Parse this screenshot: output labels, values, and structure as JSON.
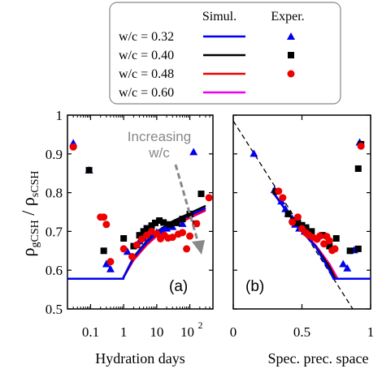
{
  "chart_data": [
    {
      "panel": "(a)",
      "type": "scatter",
      "xscale": "log",
      "xlim": [
        0.02,
        500
      ],
      "ylim": [
        0.5,
        1.0
      ],
      "xlabel": "Hydration days",
      "xticks": [
        "0.1",
        "1",
        "10",
        "10"
      ],
      "xtick_exp": "2",
      "annotation": "Increasing\nw/c",
      "series": [
        {
          "name": "w/c = 0.32",
          "sim_color": "#0000ee",
          "exp_marker": "triangle",
          "sim": [
            [
              0.02,
              0.578
            ],
            [
              0.97,
              0.578
            ],
            [
              1.0,
              0.582
            ],
            [
              2,
              0.632
            ],
            [
              5,
              0.672
            ],
            [
              10,
              0.695
            ],
            [
              30,
              0.722
            ],
            [
              100,
              0.742
            ],
            [
              300,
              0.76
            ]
          ],
          "exp": [
            [
              0.03,
              0.928
            ],
            [
              0.09,
              0.858
            ],
            [
              0.3,
              0.616
            ],
            [
              0.4,
              0.603
            ],
            [
              1.3,
              0.648
            ],
            [
              2.5,
              0.665
            ],
            [
              3,
              0.675
            ],
            [
              4,
              0.683
            ],
            [
              5,
              0.692
            ],
            [
              7,
              0.695
            ],
            [
              10,
              0.698
            ],
            [
              14,
              0.702
            ],
            [
              20,
              0.708
            ],
            [
              30,
              0.712
            ],
            [
              60,
              0.72
            ],
            [
              100,
              0.745
            ],
            [
              130,
              0.905
            ]
          ]
        },
        {
          "name": "w/c = 0.40",
          "sim_color": "#000000",
          "exp_marker": "square",
          "exp": [
            [
              0.09,
              0.858
            ],
            [
              0.25,
              0.65
            ],
            [
              1.0,
              0.682
            ],
            [
              2,
              0.662
            ],
            [
              3,
              0.69
            ],
            [
              4,
              0.7
            ],
            [
              5,
              0.708
            ],
            [
              7,
              0.715
            ],
            [
              9,
              0.722
            ],
            [
              12,
              0.728
            ],
            [
              16,
              0.723
            ],
            [
              25,
              0.718
            ],
            [
              40,
              0.722
            ],
            [
              60,
              0.732
            ],
            [
              100,
              0.745
            ],
            [
              150,
              0.72
            ],
            [
              220,
              0.797
            ]
          ],
          "sim": [
            [
              0.02,
              0.578
            ],
            [
              0.97,
              0.578
            ],
            [
              1.0,
              0.582
            ],
            [
              2,
              0.634
            ],
            [
              5,
              0.675
            ],
            [
              10,
              0.699
            ],
            [
              30,
              0.726
            ],
            [
              100,
              0.747
            ],
            [
              300,
              0.766
            ]
          ]
        },
        {
          "name": "w/c = 0.48",
          "sim_color": "#ee0000",
          "exp_marker": "circle",
          "exp": [
            [
              0.03,
              0.918
            ],
            [
              0.2,
              0.737
            ],
            [
              0.25,
              0.737
            ],
            [
              0.3,
              0.718
            ],
            [
              0.4,
              0.622
            ],
            [
              1.0,
              0.655
            ],
            [
              1.8,
              0.635
            ],
            [
              2.5,
              0.665
            ],
            [
              3.5,
              0.68
            ],
            [
              5,
              0.69
            ],
            [
              7,
              0.7
            ],
            [
              10,
              0.694
            ],
            [
              13,
              0.681
            ],
            [
              17,
              0.69
            ],
            [
              22,
              0.683
            ],
            [
              30,
              0.685
            ],
            [
              45,
              0.693
            ],
            [
              60,
              0.697
            ],
            [
              80,
              0.655
            ],
            [
              100,
              0.688
            ],
            [
              160,
              0.72
            ],
            [
              380,
              0.787
            ]
          ],
          "sim": [
            [
              0.02,
              0.578
            ],
            [
              0.97,
              0.578
            ],
            [
              1.0,
              0.582
            ],
            [
              2,
              0.628
            ],
            [
              5,
              0.667
            ],
            [
              10,
              0.69
            ],
            [
              30,
              0.716
            ],
            [
              100,
              0.737
            ],
            [
              300,
              0.756
            ]
          ]
        },
        {
          "name": "w/c = 0.60",
          "sim_color": "#ee00ee",
          "sim": [
            [
              0.02,
              0.578
            ],
            [
              0.97,
              0.578
            ],
            [
              1.0,
              0.582
            ],
            [
              2,
              0.626
            ],
            [
              5,
              0.665
            ],
            [
              10,
              0.688
            ],
            [
              30,
              0.714
            ],
            [
              100,
              0.735
            ],
            [
              300,
              0.754
            ]
          ]
        }
      ]
    },
    {
      "panel": "(b)",
      "type": "scatter",
      "xlim": [
        0.0,
        1.0
      ],
      "ylim": [
        0.5,
        1.0
      ],
      "xlabel": "Spec. prec. space",
      "xticks": [
        "0",
        "0.5",
        "1"
      ],
      "yticks": [
        "0.5",
        "0.6",
        "0.7",
        "0.8",
        "0.9",
        "1"
      ],
      "ylabel": "ρgCSH / ρsCSH",
      "dashed_line": [
        [
          0.0,
          0.985
        ],
        [
          0.87,
          0.5
        ]
      ],
      "series": [
        {
          "name": "w/c = 0.32",
          "sim": [
            [
              0.3,
              0.796
            ],
            [
              0.4,
              0.746
            ],
            [
              0.5,
              0.7
            ],
            [
              0.6,
              0.66
            ],
            [
              0.7,
              0.6
            ],
            [
              0.73,
              0.578
            ],
            [
              1.0,
              0.578
            ]
          ],
          "exp": [
            [
              0.15,
              0.901
            ],
            [
              0.3,
              0.807
            ],
            [
              0.35,
              0.778
            ],
            [
              0.38,
              0.758
            ],
            [
              0.4,
              0.746
            ],
            [
              0.43,
              0.733
            ],
            [
              0.45,
              0.718
            ],
            [
              0.48,
              0.708
            ],
            [
              0.52,
              0.7
            ],
            [
              0.58,
              0.684
            ],
            [
              0.8,
              0.616
            ],
            [
              0.83,
              0.605
            ],
            [
              0.88,
              0.652
            ],
            [
              0.92,
              0.93
            ]
          ]
        },
        {
          "name": "w/c = 0.40",
          "sim": [
            [
              0.3,
              0.796
            ],
            [
              0.4,
              0.746
            ],
            [
              0.5,
              0.7
            ],
            [
              0.6,
              0.661
            ],
            [
              0.7,
              0.608
            ],
            [
              0.74,
              0.578
            ],
            [
              1.0,
              0.578
            ]
          ],
          "exp": [
            [
              0.31,
              0.803
            ],
            [
              0.4,
              0.745
            ],
            [
              0.44,
              0.728
            ],
            [
              0.47,
              0.722
            ],
            [
              0.5,
              0.716
            ],
            [
              0.53,
              0.71
            ],
            [
              0.57,
              0.7
            ],
            [
              0.65,
              0.69
            ],
            [
              0.7,
              0.662
            ],
            [
              0.75,
              0.682
            ],
            [
              0.85,
              0.65
            ],
            [
              0.91,
              0.862
            ],
            [
              0.93,
              0.925
            ],
            [
              0.91,
              0.655
            ]
          ]
        },
        {
          "name": "w/c = 0.48",
          "sim": [
            [
              0.3,
              0.796
            ],
            [
              0.4,
              0.746
            ],
            [
              0.5,
              0.702
            ],
            [
              0.6,
              0.662
            ],
            [
              0.7,
              0.612
            ],
            [
              0.75,
              0.578
            ],
            [
              1.0,
              0.578
            ]
          ],
          "exp": [
            [
              0.33,
              0.804
            ],
            [
              0.36,
              0.787
            ],
            [
              0.43,
              0.724
            ],
            [
              0.47,
              0.737
            ],
            [
              0.5,
              0.707
            ],
            [
              0.53,
              0.696
            ],
            [
              0.55,
              0.69
            ],
            [
              0.58,
              0.685
            ],
            [
              0.61,
              0.68
            ],
            [
              0.63,
              0.688
            ],
            [
              0.66,
              0.668
            ],
            [
              0.68,
              0.687
            ],
            [
              0.7,
              0.676
            ],
            [
              0.72,
              0.651
            ],
            [
              0.74,
              0.655
            ],
            [
              0.93,
              0.92
            ]
          ]
        },
        {
          "name": "w/c = 0.60",
          "sim": [
            [
              0.3,
              0.796
            ],
            [
              0.4,
              0.746
            ],
            [
              0.5,
              0.703
            ],
            [
              0.6,
              0.664
            ],
            [
              0.7,
              0.616
            ],
            [
              0.76,
              0.578
            ],
            [
              1.0,
              0.578
            ]
          ]
        }
      ]
    }
  ],
  "legend": {
    "sim_header": "Simul.",
    "exp_header": "Exper.",
    "entries": [
      {
        "label": "w/c = 0.32",
        "color": "#0000ee",
        "marker": "triangle"
      },
      {
        "label": "w/c = 0.40",
        "color": "#000000",
        "marker": "square"
      },
      {
        "label": "w/c = 0.48",
        "color": "#ee0000",
        "marker": "circle"
      },
      {
        "label": "w/c = 0.60",
        "color": "#ee00ee",
        "marker": ""
      }
    ]
  }
}
